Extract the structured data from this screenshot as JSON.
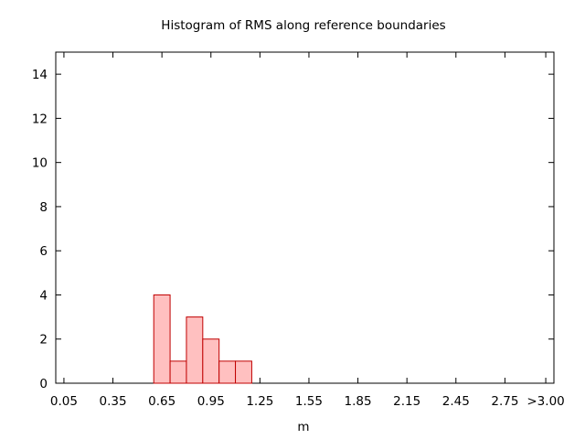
{
  "chart_data": {
    "type": "bar",
    "title": "Histogram of RMS along reference boundaries",
    "xlabel": "m",
    "ylabel": "",
    "x_ticks": [
      "0.05",
      "0.35",
      "0.65",
      "0.95",
      "1.25",
      "1.55",
      "1.85",
      "2.15",
      "2.45",
      "2.75",
      ">3.00"
    ],
    "y_ticks": [
      "0",
      "2",
      "4",
      "6",
      "8",
      "10",
      "12",
      "14"
    ],
    "xlim": [
      0.0,
      3.05
    ],
    "ylim": [
      0,
      15
    ],
    "bin_width": 0.1,
    "bins": [
      {
        "start": 0.6,
        "count": 4
      },
      {
        "start": 0.7,
        "count": 1
      },
      {
        "start": 0.8,
        "count": 3
      },
      {
        "start": 0.9,
        "count": 2
      },
      {
        "start": 1.0,
        "count": 1
      },
      {
        "start": 1.1,
        "count": 1
      }
    ],
    "colors": {
      "bar_fill": "#ffc0c0",
      "bar_edge": "#c00000"
    },
    "grid": false,
    "legend": "none"
  }
}
